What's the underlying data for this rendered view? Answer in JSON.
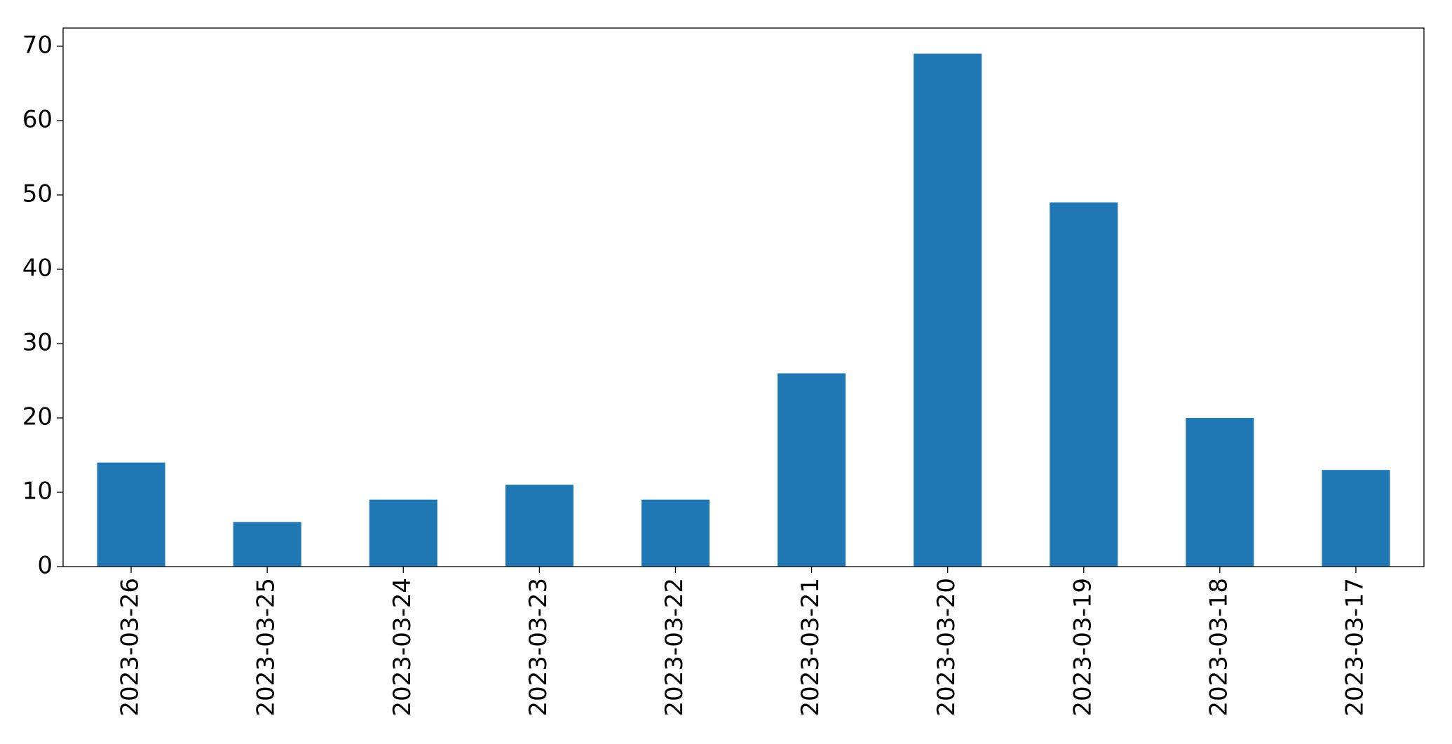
{
  "chart_data": {
    "type": "bar",
    "categories": [
      "2023-03-26",
      "2023-03-25",
      "2023-03-24",
      "2023-03-23",
      "2023-03-22",
      "2023-03-21",
      "2023-03-20",
      "2023-03-19",
      "2023-03-18",
      "2023-03-17"
    ],
    "values": [
      14,
      6,
      9,
      11,
      9,
      26,
      69,
      49,
      20,
      13
    ],
    "color": "#1f77b4",
    "ylim": [
      0,
      72.45
    ],
    "yticks": [
      0,
      10,
      20,
      30,
      40,
      50,
      60,
      70
    ],
    "grid": false
  }
}
